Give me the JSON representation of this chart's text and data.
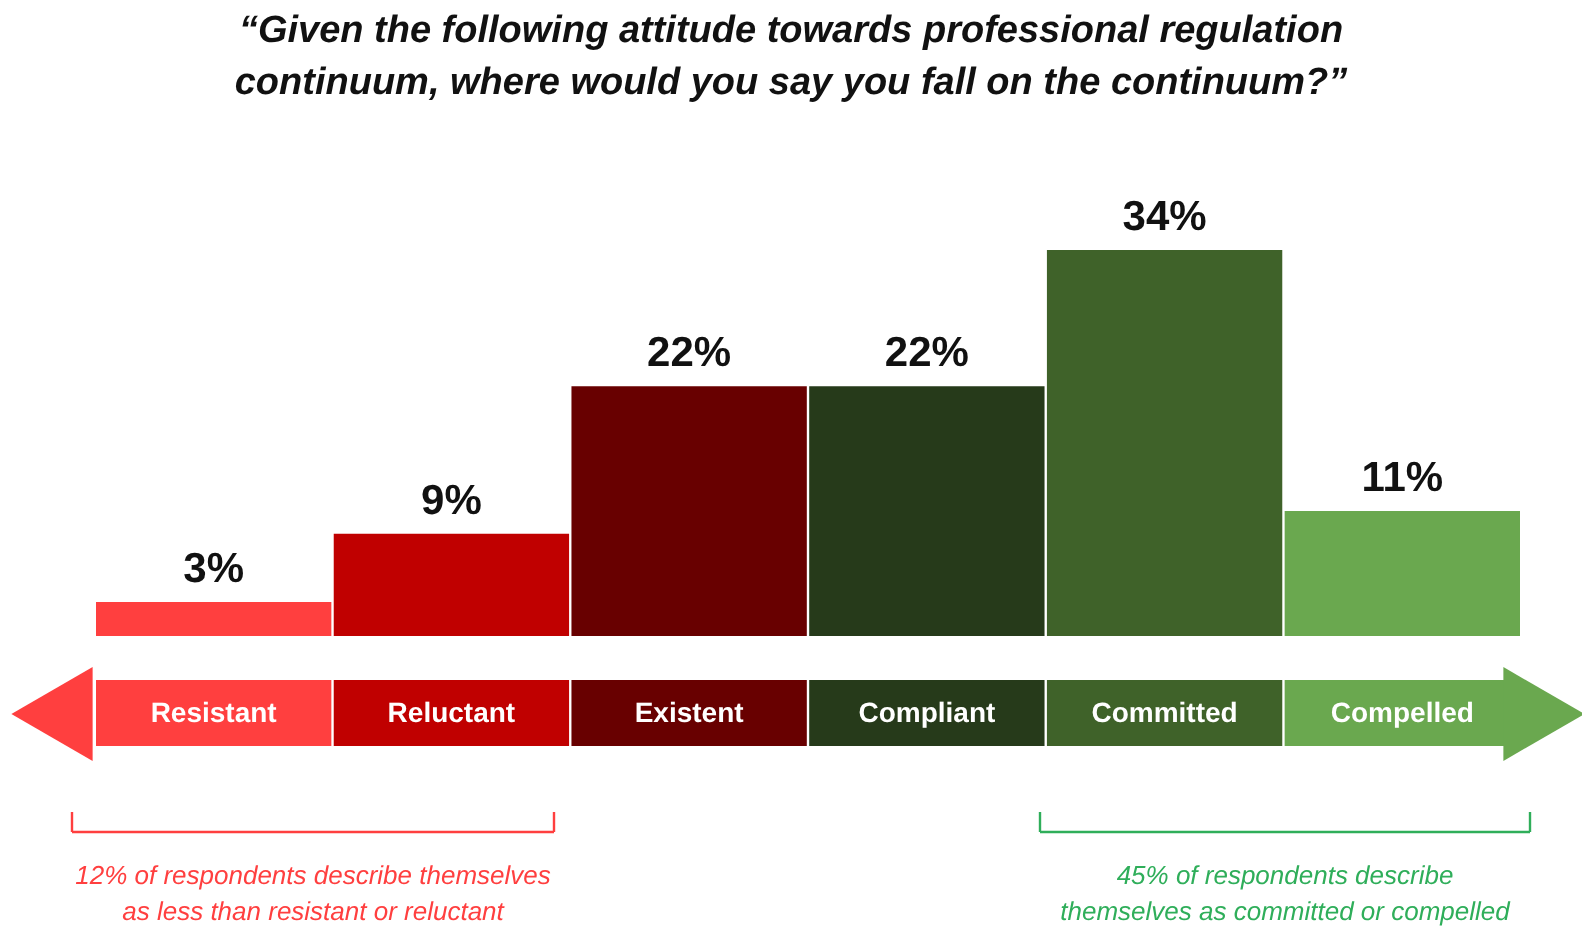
{
  "chart_data": {
    "type": "bar",
    "title": "“Given the following attitude towards professional regulation continuum, where would you say you fall on the continuum?”",
    "categories": [
      "Resistant",
      "Reluctant",
      "Existent",
      "Compliant",
      "Committed",
      "Compelled"
    ],
    "values": [
      3,
      9,
      22,
      22,
      34,
      11
    ],
    "colors": [
      "#ff3f3f",
      "#c00000",
      "#680000",
      "#263a1a",
      "#3f6229",
      "#6aa84f"
    ],
    "value_labels": [
      "3%",
      "9%",
      "22%",
      "22%",
      "34%",
      "11%"
    ],
    "annotations": [
      "12% of respondents describe themselves as less than resistant or reluctant",
      "45% of respondents describe themselves as committed or compelled"
    ]
  }
}
